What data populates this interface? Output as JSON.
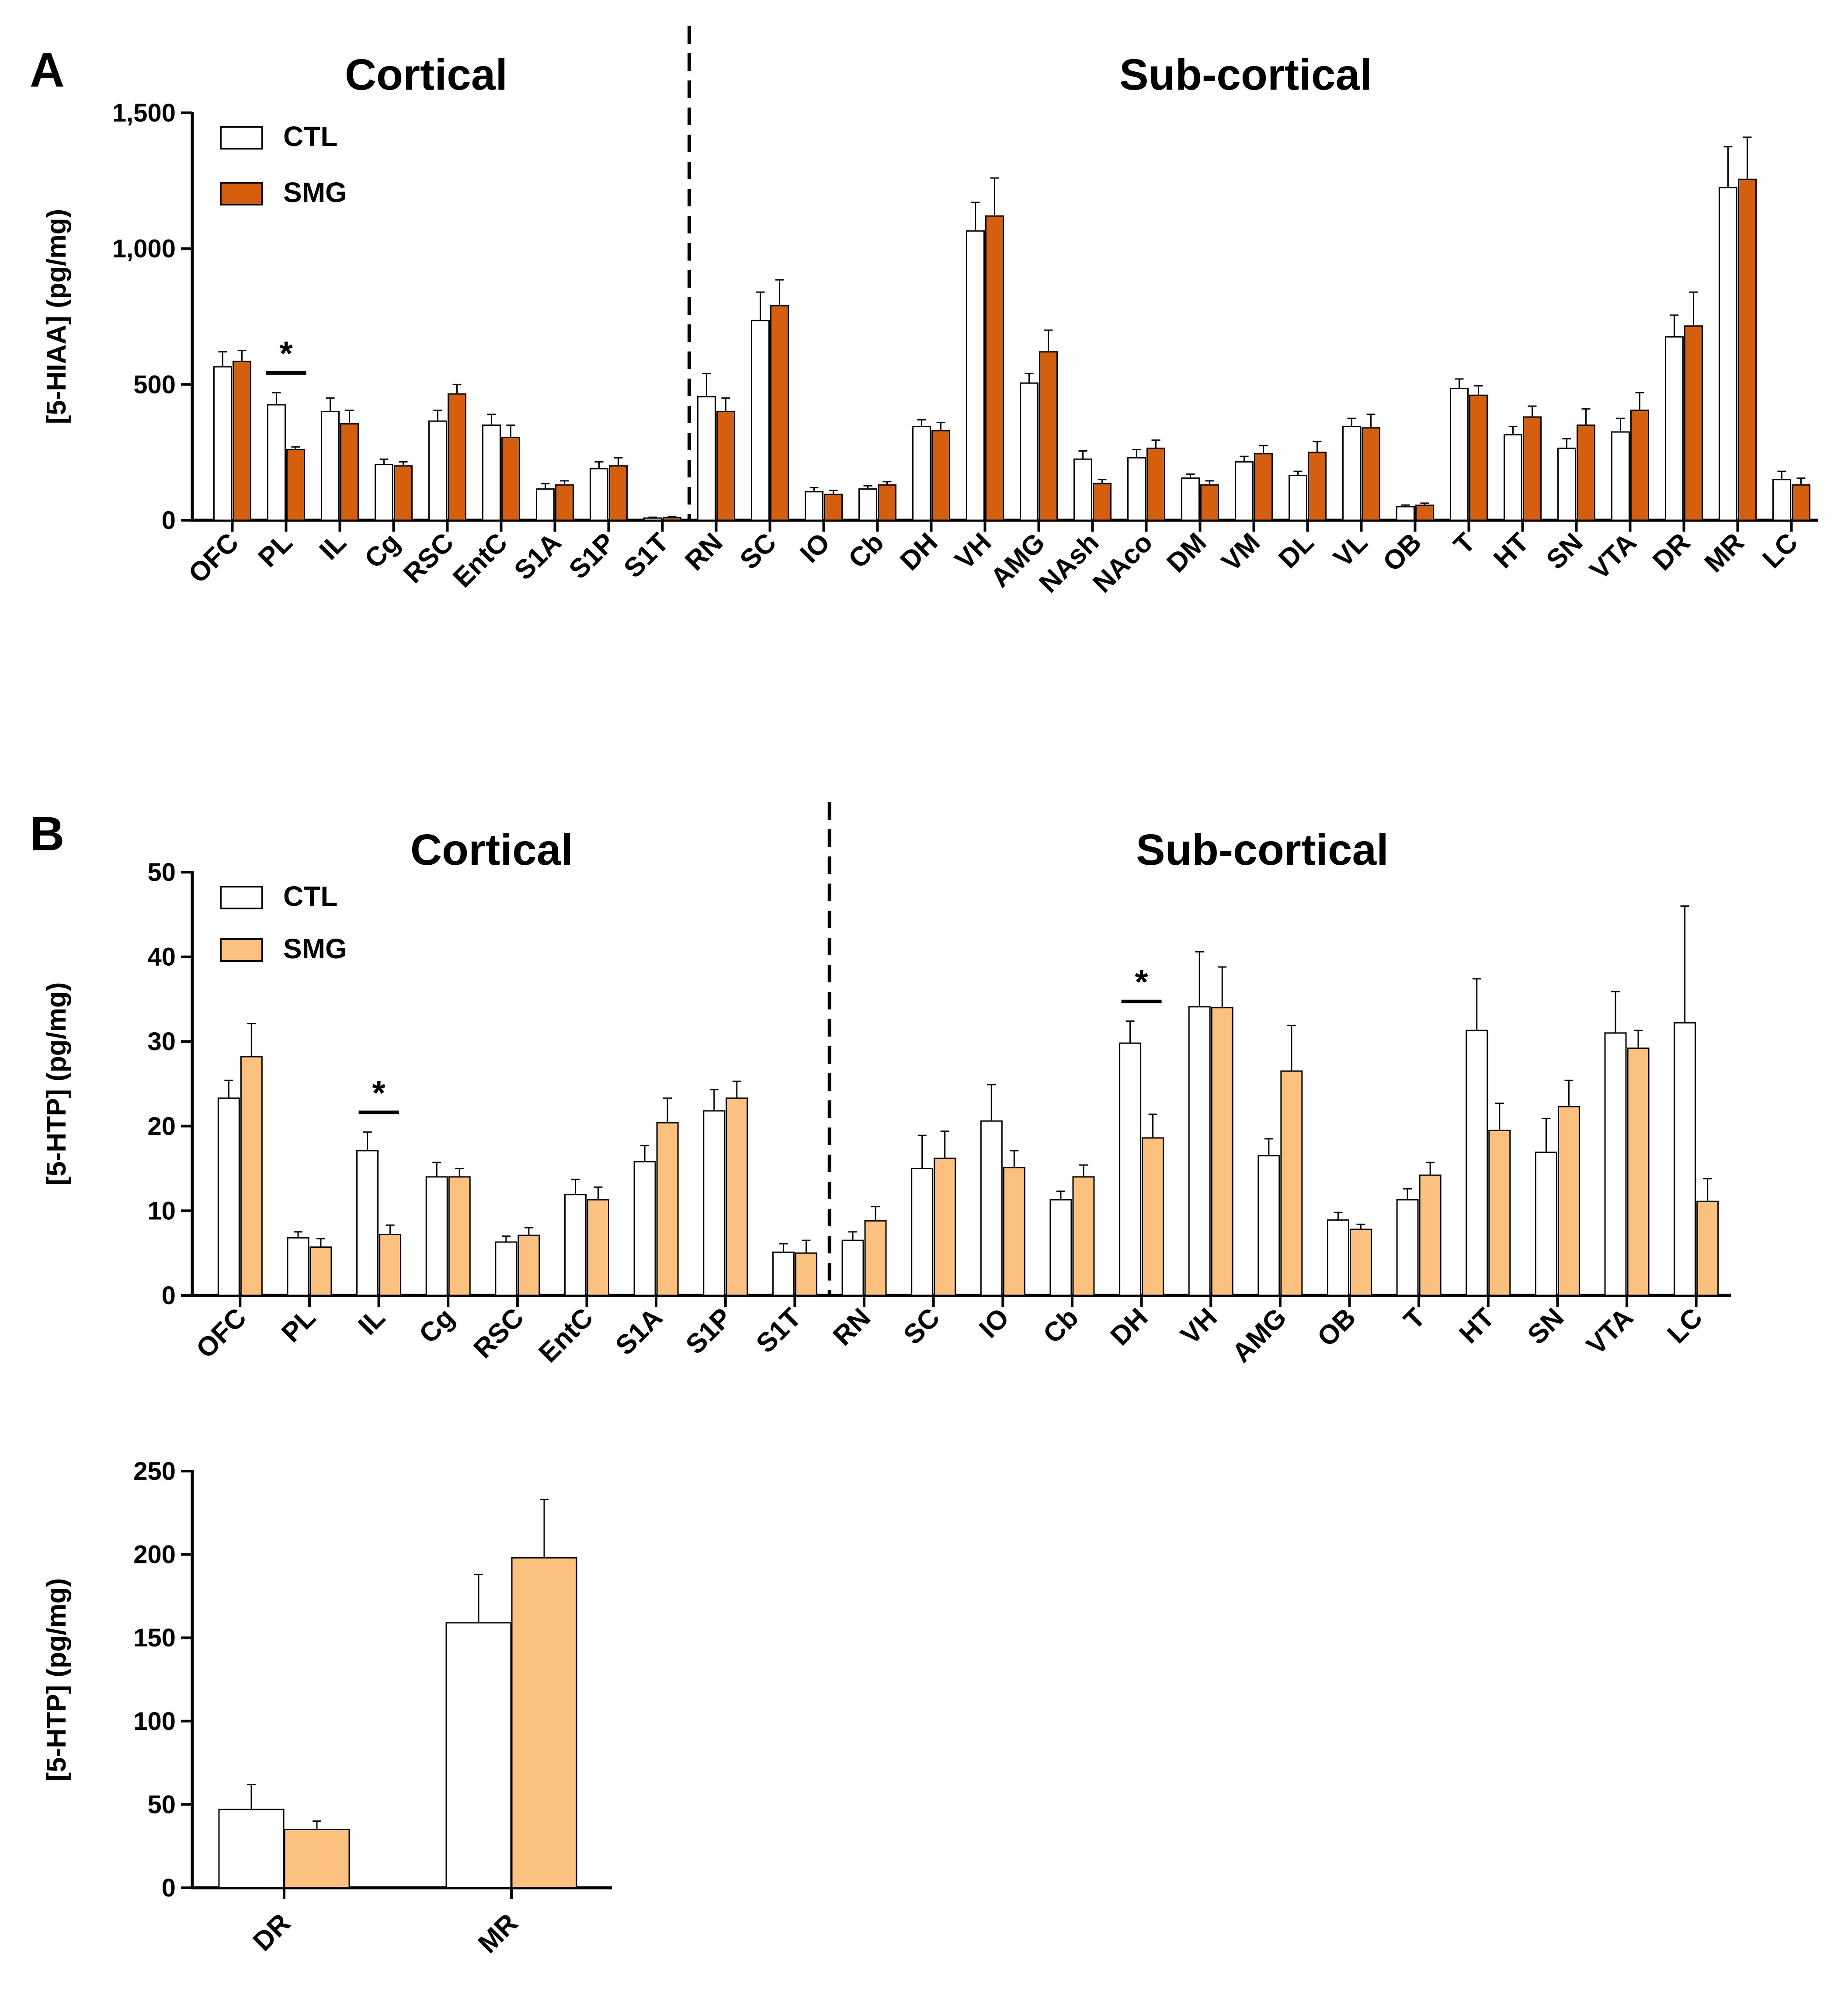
{
  "chart_data": [
    {
      "panel": "A",
      "type": "bar",
      "ylabel": "[5-HIAA] (pg/mg)",
      "ylim": [
        0,
        1500
      ],
      "yticks": [
        0,
        500,
        1000,
        1500
      ],
      "ytick_labels": [
        "0",
        "500",
        "1,000",
        "1,500"
      ],
      "group_labels": [
        "Cortical",
        "Sub-cortical"
      ],
      "divider_after_index": 8,
      "legend": [
        {
          "name": "CTL",
          "color": "#ffffff"
        },
        {
          "name": "SMG",
          "color": "#d35f0f"
        }
      ],
      "categories": [
        "OFC",
        "PL",
        "IL",
        "Cg",
        "RSC",
        "EntC",
        "S1A",
        "S1P",
        "S1T",
        "RN",
        "SC",
        "IO",
        "Cb",
        "DH",
        "VH",
        "AMG",
        "NAsh",
        "NAco",
        "DM",
        "VM",
        "DL",
        "VL",
        "OB",
        "T",
        "HT",
        "SN",
        "VTA",
        "DR",
        "MR",
        "LC"
      ],
      "series": [
        {
          "name": "CTL",
          "color": "#ffffff",
          "values": [
            565,
            425,
            400,
            205,
            365,
            350,
            115,
            190,
            8,
            455,
            735,
            105,
            115,
            345,
            1065,
            505,
            225,
            230,
            155,
            215,
            165,
            345,
            50,
            485,
            315,
            265,
            325,
            675,
            1225,
            150
          ],
          "errors": [
            55,
            45,
            50,
            20,
            40,
            40,
            20,
            25,
            3,
            85,
            105,
            15,
            12,
            25,
            105,
            35,
            30,
            30,
            15,
            20,
            15,
            30,
            6,
            35,
            30,
            35,
            50,
            80,
            150,
            30
          ]
        },
        {
          "name": "SMG",
          "color": "#d35f0f",
          "values": [
            585,
            260,
            355,
            200,
            465,
            305,
            130,
            200,
            10,
            400,
            790,
            95,
            130,
            330,
            1120,
            620,
            135,
            265,
            130,
            245,
            250,
            340,
            55,
            460,
            380,
            350,
            405,
            715,
            1255,
            130
          ],
          "errors": [
            40,
            10,
            50,
            15,
            35,
            45,
            15,
            30,
            3,
            50,
            95,
            15,
            12,
            30,
            140,
            80,
            15,
            30,
            15,
            30,
            40,
            50,
            8,
            35,
            40,
            60,
            65,
            125,
            155,
            25
          ]
        }
      ],
      "significance": [
        {
          "category": "PL",
          "label": "*"
        }
      ]
    },
    {
      "panel": "B",
      "type": "bar",
      "ylabel": "[5-HTP] (pg/mg)",
      "ylim": [
        0,
        50
      ],
      "yticks": [
        0,
        10,
        20,
        30,
        40,
        50
      ],
      "ytick_labels": [
        "0",
        "10",
        "20",
        "30",
        "40",
        "50"
      ],
      "group_labels": [
        "Cortical",
        "Sub-cortical"
      ],
      "divider_after_index": 8,
      "legend": [
        {
          "name": "CTL",
          "color": "#ffffff"
        },
        {
          "name": "SMG",
          "color": "#fcc07f"
        }
      ],
      "categories": [
        "OFC",
        "PL",
        "IL",
        "Cg",
        "RSC",
        "EntC",
        "S1A",
        "S1P",
        "S1T",
        "RN",
        "SC",
        "IO",
        "Cb",
        "DH",
        "VH",
        "AMG",
        "OB",
        "T",
        "HT",
        "SN",
        "VTA",
        "LC"
      ],
      "series": [
        {
          "name": "CTL",
          "color": "#ffffff",
          "values": [
            23.3,
            6.8,
            17.1,
            14.0,
            6.3,
            11.9,
            15.8,
            21.8,
            5.1,
            6.5,
            15.0,
            20.6,
            11.3,
            29.8,
            34.1,
            16.5,
            8.9,
            11.3,
            31.3,
            16.9,
            31.0,
            32.2
          ],
          "errors": [
            2.1,
            0.7,
            2.2,
            1.7,
            0.7,
            1.8,
            1.9,
            2.5,
            1.0,
            1.0,
            3.9,
            4.3,
            1.0,
            2.6,
            6.5,
            2.0,
            0.9,
            1.3,
            6.1,
            4.0,
            4.9,
            13.8
          ]
        },
        {
          "name": "SMG",
          "color": "#fcc07f",
          "values": [
            28.2,
            5.7,
            7.2,
            14.0,
            7.1,
            11.3,
            20.4,
            23.3,
            5.0,
            8.8,
            16.2,
            15.1,
            14.0,
            18.6,
            34.0,
            26.5,
            7.8,
            14.2,
            19.5,
            22.3,
            29.2,
            11.1
          ],
          "errors": [
            3.9,
            1.0,
            1.1,
            1.0,
            0.9,
            1.5,
            2.9,
            2.0,
            1.5,
            1.7,
            3.2,
            2.0,
            1.4,
            2.8,
            4.8,
            5.4,
            0.6,
            1.5,
            3.2,
            3.1,
            2.1,
            2.7
          ]
        }
      ],
      "significance": [
        {
          "category": "IL",
          "label": "*"
        },
        {
          "category": "DH",
          "label": "*"
        }
      ]
    },
    {
      "panel": "B-inset",
      "type": "bar",
      "ylabel": "[5-HTP] (pg/mg)",
      "ylim": [
        0,
        250
      ],
      "yticks": [
        0,
        50,
        100,
        150,
        200,
        250
      ],
      "ytick_labels": [
        "0",
        "50",
        "100",
        "150",
        "200",
        "250"
      ],
      "categories": [
        "DR",
        "MR"
      ],
      "series": [
        {
          "name": "CTL",
          "color": "#ffffff",
          "values": [
            47,
            159
          ],
          "errors": [
            15,
            29
          ]
        },
        {
          "name": "SMG",
          "color": "#fcc07f",
          "values": [
            35,
            198
          ],
          "errors": [
            5,
            35
          ]
        }
      ]
    }
  ]
}
